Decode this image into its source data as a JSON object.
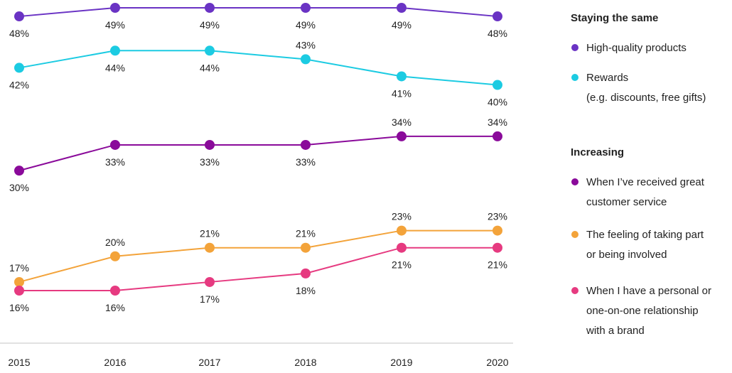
{
  "chart_data": {
    "type": "line",
    "x": [
      "2015",
      "2016",
      "2017",
      "2018",
      "2019",
      "2020"
    ],
    "value_suffix": "%",
    "ylim": [
      10,
      52
    ],
    "grid": false,
    "legend_placement": "right",
    "series": [
      {
        "name": "High-quality products",
        "group": 0,
        "color": "#6a33c4",
        "values": [
          48,
          49,
          49,
          49,
          49,
          48
        ],
        "label_pos": [
          "below",
          "below",
          "below",
          "below",
          "below",
          "below"
        ]
      },
      {
        "name": "Rewards",
        "name_line2": "(e.g. discounts, free gifts)",
        "group": 0,
        "color": "#1ccbe2",
        "values": [
          42,
          44,
          44,
          43,
          41,
          40
        ],
        "label_pos": [
          "below",
          "below",
          "below",
          "above",
          "below",
          "below"
        ]
      },
      {
        "name": "When I’ve received great",
        "name_line2": "customer service",
        "group": 1,
        "color": "#8a0a9a",
        "values": [
          30,
          33,
          33,
          33,
          34,
          34
        ],
        "label_pos": [
          "below",
          "below",
          "below",
          "below",
          "above",
          "above"
        ]
      },
      {
        "name": "The feeling of taking part",
        "name_line2": "or being involved",
        "group": 1,
        "color": "#f3a33a",
        "values": [
          17,
          20,
          21,
          21,
          23,
          23
        ],
        "label_pos": [
          "above",
          "above",
          "above",
          "above",
          "above",
          "above"
        ]
      },
      {
        "name": "When I have a personal or",
        "name_line2": "one-on-one relationship",
        "name_line3": "with a brand",
        "group": 1,
        "color": "#e63a80",
        "values": [
          16,
          16,
          17,
          18,
          21,
          21
        ],
        "label_pos": [
          "below",
          "below",
          "below",
          "below",
          "below",
          "below"
        ]
      }
    ],
    "legend_groups": [
      "Staying the same",
      "Increasing"
    ]
  }
}
